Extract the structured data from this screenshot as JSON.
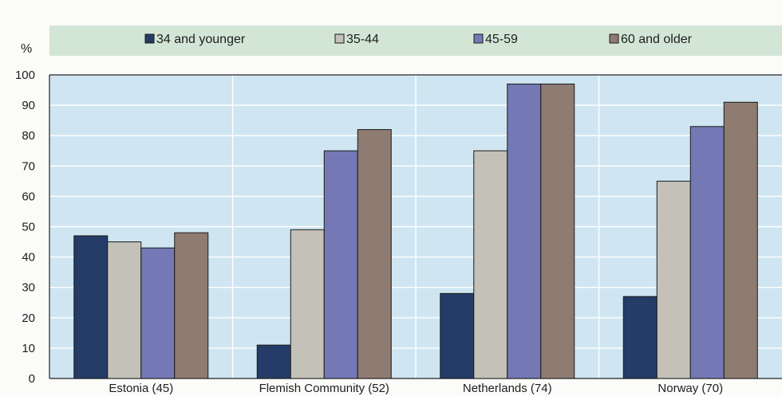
{
  "chart_data": {
    "type": "bar",
    "unit_label": "%",
    "ylim": [
      0,
      100
    ],
    "yticks": [
      0,
      10,
      20,
      30,
      40,
      50,
      60,
      70,
      80,
      90,
      100
    ],
    "grid": true,
    "legend_position": "top",
    "categories": [
      "Estonia (45)",
      "Flemish Community (52)",
      "Netherlands (74)",
      "Norway (70)"
    ],
    "series": [
      {
        "name": "34 and younger",
        "color": "#243c67",
        "values": [
          47,
          11,
          28,
          27
        ]
      },
      {
        "name": "35-44",
        "color": "#c3c1b8",
        "values": [
          45,
          49,
          75,
          65
        ]
      },
      {
        "name": "45-59",
        "color": "#7479b5",
        "values": [
          43,
          75,
          97,
          83
        ]
      },
      {
        "name": "60 and older",
        "color": "#8e7b72",
        "values": [
          48,
          82,
          97,
          91
        ]
      }
    ],
    "colors": {
      "plot_background": "#cfe6f2",
      "legend_background": "#d3e6d6",
      "gridline": "#ffffff"
    }
  }
}
